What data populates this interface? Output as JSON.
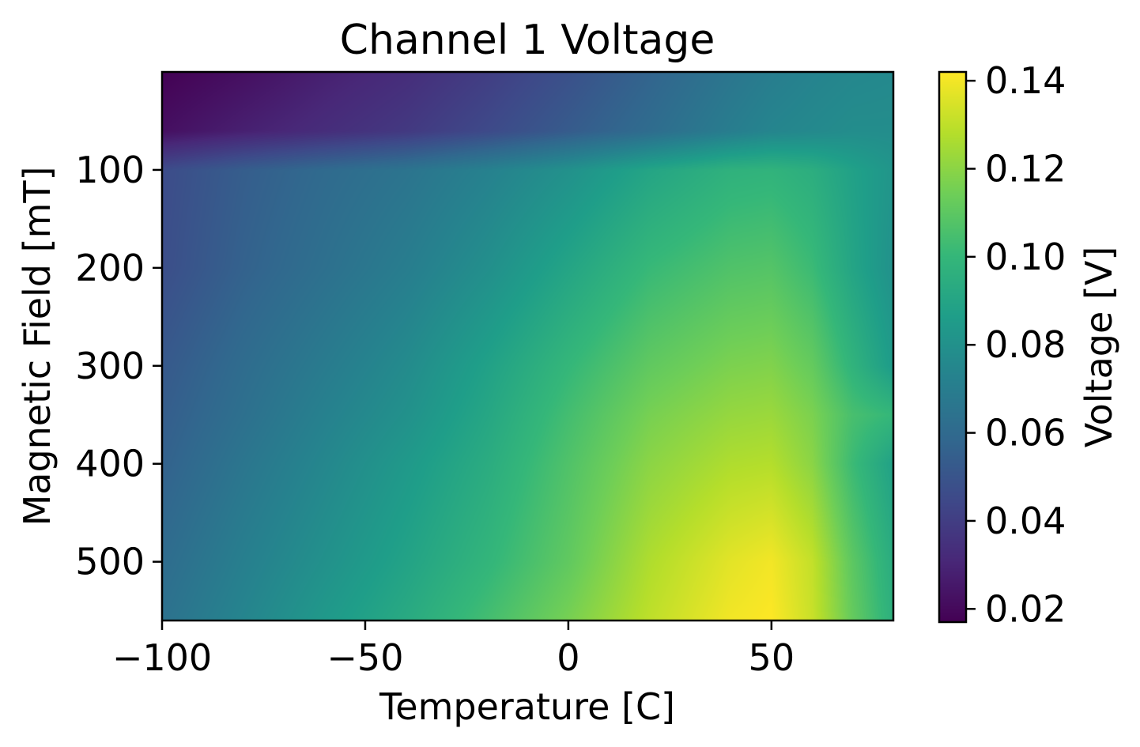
{
  "chart_data": {
    "type": "heatmap",
    "title": "Channel 1 Voltage",
    "xlabel": "Temperature [C]",
    "ylabel": "Magnetic Field [mT]",
    "xlim": [
      -100,
      80
    ],
    "ylim": [
      560,
      0
    ],
    "x_ticks": [
      -100,
      -50,
      0,
      50
    ],
    "x_tick_labels": [
      "−100",
      "−50",
      "0",
      "50"
    ],
    "y_ticks": [
      100,
      200,
      300,
      400,
      500
    ],
    "y_tick_labels": [
      "100",
      "200",
      "300",
      "400",
      "500"
    ],
    "colormap": "viridis",
    "colorbar": {
      "label": "Voltage [V]",
      "vmin": 0.017,
      "vmax": 0.142,
      "ticks": [
        0.02,
        0.04,
        0.06,
        0.08,
        0.1,
        0.12,
        0.14
      ],
      "tick_labels": [
        "0.02",
        "0.04",
        "0.06",
        "0.08",
        "0.10",
        "0.12",
        "0.14"
      ]
    },
    "grid_temperatures": [
      -100,
      -80,
      -60,
      -40,
      -20,
      0,
      20,
      40,
      50,
      60,
      70,
      80
    ],
    "grid_fields": [
      0,
      60,
      100,
      200,
      300,
      350,
      400,
      500,
      560
    ],
    "values": [
      [
        0.017,
        0.022,
        0.028,
        0.033,
        0.04,
        0.048,
        0.057,
        0.066,
        0.07,
        0.073,
        0.075,
        0.076
      ],
      [
        0.022,
        0.028,
        0.033,
        0.038,
        0.045,
        0.053,
        0.061,
        0.07,
        0.074,
        0.076,
        0.078,
        0.078
      ],
      [
        0.046,
        0.054,
        0.06,
        0.065,
        0.072,
        0.08,
        0.09,
        0.097,
        0.098,
        0.095,
        0.088,
        0.082
      ],
      [
        0.047,
        0.056,
        0.063,
        0.07,
        0.079,
        0.09,
        0.101,
        0.107,
        0.108,
        0.102,
        0.09,
        0.08
      ],
      [
        0.052,
        0.061,
        0.069,
        0.077,
        0.088,
        0.1,
        0.111,
        0.117,
        0.118,
        0.112,
        0.098,
        0.085
      ],
      [
        0.054,
        0.063,
        0.072,
        0.08,
        0.091,
        0.104,
        0.116,
        0.122,
        0.123,
        0.117,
        0.105,
        0.1
      ],
      [
        0.056,
        0.066,
        0.075,
        0.084,
        0.094,
        0.107,
        0.12,
        0.127,
        0.128,
        0.12,
        0.102,
        0.088
      ],
      [
        0.061,
        0.071,
        0.08,
        0.089,
        0.099,
        0.111,
        0.127,
        0.137,
        0.14,
        0.131,
        0.11,
        0.094
      ],
      [
        0.064,
        0.074,
        0.084,
        0.093,
        0.104,
        0.116,
        0.13,
        0.14,
        0.142,
        0.132,
        0.112,
        0.096
      ]
    ]
  }
}
